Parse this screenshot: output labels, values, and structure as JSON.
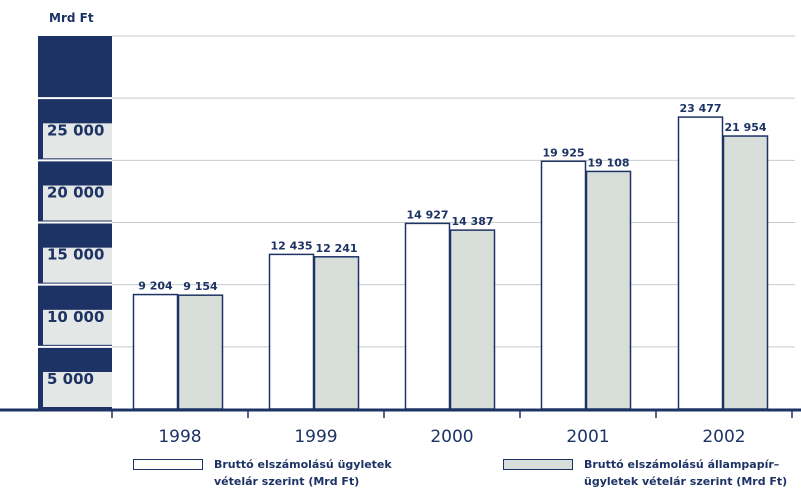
{
  "chart_data": {
    "type": "bar",
    "unit_label": "Mrd Ft",
    "categories": [
      "1998",
      "1999",
      "2000",
      "2001",
      "2002"
    ],
    "series": [
      {
        "name": "Bruttó elszámolású ügyletek\nvételár szerint (Mrd Ft)",
        "values": [
          9204,
          12435,
          14927,
          19925,
          23477
        ],
        "labels": [
          "9 204",
          "12 435",
          "14 927",
          "19 925",
          "23 477"
        ]
      },
      {
        "name": "Bruttó elszámolású állampapír–\nügyletek vételár szerint (Mrd Ft)",
        "values": [
          9154,
          12241,
          14387,
          19108,
          21954
        ],
        "labels": [
          "9 154",
          "12 241",
          "14 387",
          "19 108",
          "21 954"
        ]
      }
    ],
    "yticks": [
      5000,
      10000,
      15000,
      20000,
      25000
    ],
    "ytick_labels": [
      "5 000",
      "10 000",
      "15 000",
      "20 000",
      "25 000"
    ],
    "ylim": [
      0,
      30000
    ],
    "grid": true,
    "legend_position": "bottom"
  },
  "colors": {
    "navy": "#1e3365",
    "series1_fill": "#ffffff",
    "series2_fill": "#d7ddd9",
    "label_panel": "#e3e7e5",
    "grid": "#c8cccb"
  }
}
